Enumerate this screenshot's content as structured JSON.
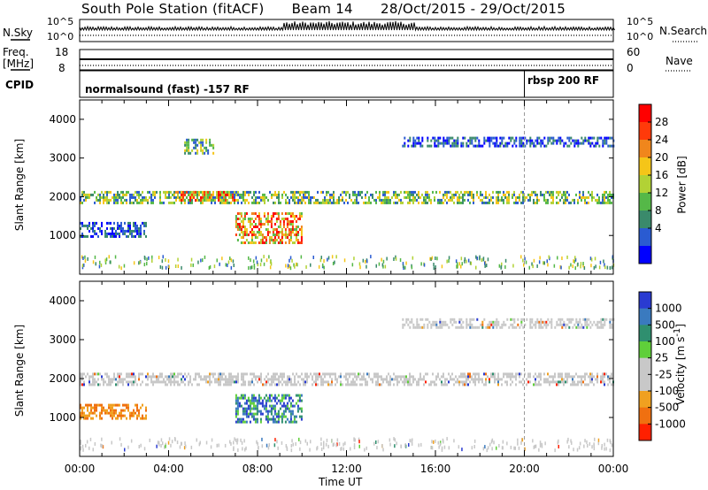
{
  "header": {
    "station": "South Pole Station (fitACF)",
    "beam": "Beam 14",
    "dates": "28/Oct/2015 - 29/Oct/2015"
  },
  "top_panels": {
    "nsky_label": "N.Sky",
    "nsky_ticks": [
      "10^5",
      "10^0"
    ],
    "nsearch_label": "N.Search",
    "freq_label_1": "Freq.",
    "freq_label_2": "[MHz]",
    "freq_ticks": [
      "18",
      "8"
    ],
    "nave_ticks": [
      "60",
      "0"
    ],
    "nave_label": "Nave",
    "cpid_label": "CPID",
    "cpid_segments": [
      {
        "name": "normalsound (fast) -157 RF",
        "start_hour": 0
      },
      {
        "name": "rbsp 200 RF",
        "start_hour": 20
      }
    ]
  },
  "chart_data": [
    {
      "type": "heatmap",
      "quantity": "Power",
      "ylabel": "Slant Range [km]",
      "ylim": [
        0,
        4500
      ],
      "y_ticks": [
        "4000",
        "3000",
        "2000",
        "1000"
      ],
      "colorbar_label": "Power [dB]",
      "colorbar_ticks": [
        "28",
        "24",
        "20",
        "16",
        "12",
        "8",
        "4"
      ],
      "colors": [
        "#0000ff",
        "#2a5bd1",
        "#3a8a6b",
        "#55b848",
        "#b2d235",
        "#f5c518",
        "#f0861c",
        "#ff3a0a",
        "#ff0000"
      ],
      "echo_regions": [
        {
          "x_start_hour": 0.0,
          "x_end_hour": 3.0,
          "range_km": [
            1000,
            1350
          ],
          "level": "low"
        },
        {
          "x_start_hour": 0.0,
          "x_end_hour": 24.0,
          "range_km": [
            1850,
            2150
          ],
          "level": "medium"
        },
        {
          "x_start_hour": 4.3,
          "x_end_hour": 7.0,
          "range_km": [
            1900,
            2150
          ],
          "level": "high"
        },
        {
          "x_start_hour": 7.0,
          "x_end_hour": 10.0,
          "range_km": [
            800,
            1600
          ],
          "level": "high"
        },
        {
          "x_start_hour": 4.7,
          "x_end_hour": 6.0,
          "range_km": [
            3100,
            3500
          ],
          "level": "medium"
        },
        {
          "x_start_hour": 14.5,
          "x_end_hour": 24.0,
          "range_km": [
            3300,
            3550
          ],
          "level": "low"
        }
      ]
    },
    {
      "type": "heatmap",
      "quantity": "Velocity",
      "ylabel": "Slant Range [km]",
      "ylim": [
        0,
        4500
      ],
      "y_ticks": [
        "4000",
        "3000",
        "2000",
        "1000"
      ],
      "colorbar_label": "Velocity [m s-1]",
      "colorbar_ticks": [
        "1000",
        "500",
        "100",
        "25",
        "-25",
        "-100",
        "-500",
        "-1000"
      ],
      "colors": [
        "#2a3bd1",
        "#3a7abf",
        "#2f8f6f",
        "#5fcf3a",
        "#c8c8c8",
        "#c8c8c8",
        "#f0a020",
        "#f07010",
        "#ff2000"
      ],
      "echo_regions": [
        {
          "x_start_hour": 0.0,
          "x_end_hour": 3.0,
          "range_km": [
            1000,
            1350
          ],
          "velocity": "-500"
        },
        {
          "x_start_hour": 0.0,
          "x_end_hour": 24.0,
          "range_km": [
            1850,
            2150
          ],
          "velocity": "0"
        },
        {
          "x_start_hour": 7.0,
          "x_end_hour": 10.0,
          "range_km": [
            900,
            1600
          ],
          "velocity": "500"
        },
        {
          "x_start_hour": 14.5,
          "x_end_hour": 24.0,
          "range_km": [
            3300,
            3550
          ],
          "velocity": "0"
        }
      ]
    }
  ],
  "x_axis": {
    "ticks": [
      "00:00",
      "04:00",
      "08:00",
      "12:00",
      "16:00",
      "20:00",
      "00:00"
    ],
    "label": "Time UT",
    "xlim_hours": [
      0,
      24
    ]
  }
}
